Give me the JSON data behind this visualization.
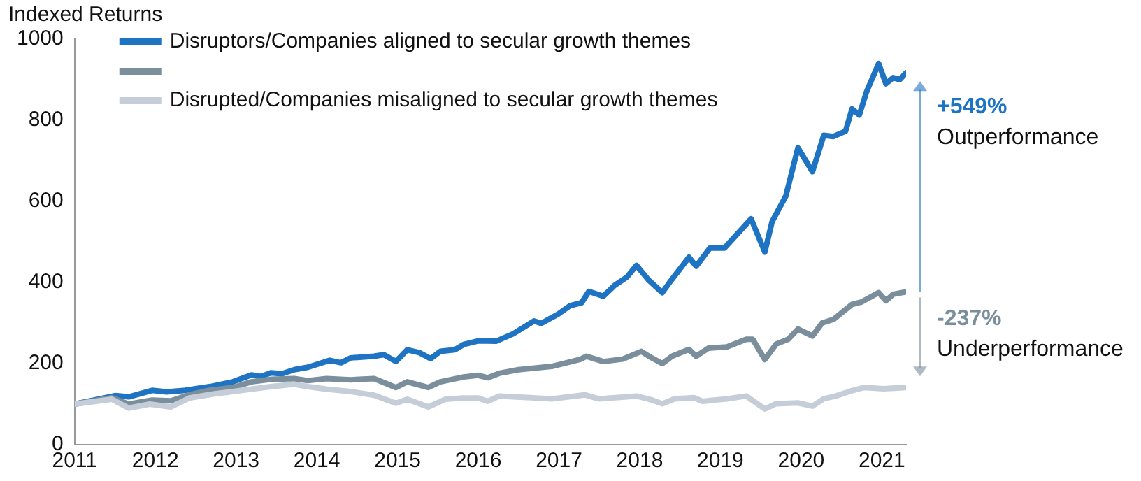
{
  "chart_data": {
    "type": "line",
    "ylabel": "Indexed Returns",
    "xlim": [
      2011,
      2021.3
    ],
    "xticks": [
      2011,
      2012,
      2013,
      2014,
      2015,
      2016,
      2017,
      2018,
      2019,
      2020,
      2021
    ],
    "ylim": [
      0,
      1000
    ],
    "yticks": [
      0,
      200,
      400,
      600,
      800,
      1000
    ],
    "grid": false,
    "legend": "top left",
    "marker": "none",
    "line_style": "solid",
    "annotations": [
      "+549%",
      "Outperformance",
      "-237%",
      "Underperformance"
    ],
    "series": [
      {
        "name": "Disruptors/Companies aligned to secular growth themes",
        "color": "#1f73c3",
        "x": [
          2011,
          2011.5,
          2011.67,
          2011.96,
          2012.14,
          2012.37,
          2012.67,
          2012.96,
          2013.19,
          2013.31,
          2013.43,
          2013.57,
          2013.72,
          2013.89,
          2014.16,
          2014.3,
          2014.42,
          2014.71,
          2014.83,
          2014.98,
          2015.12,
          2015.27,
          2015.41,
          2015.53,
          2015.71,
          2015.82,
          2016.0,
          2016.22,
          2016.43,
          2016.69,
          2016.78,
          2016.99,
          2017.14,
          2017.28,
          2017.37,
          2017.55,
          2017.69,
          2017.84,
          2017.96,
          2018.11,
          2018.28,
          2018.37,
          2018.61,
          2018.7,
          2018.87,
          2019.05,
          2019.38,
          2019.55,
          2019.64,
          2019.81,
          2019.96,
          2020.14,
          2020.28,
          2020.4,
          2020.55,
          2020.63,
          2020.72,
          2020.81,
          2020.96,
          2021.05,
          2021.14,
          2021.22,
          2021.3
        ],
        "values": [
          100,
          121,
          118,
          134,
          130,
          134,
          143,
          155,
          172,
          168,
          177,
          175,
          185,
          191,
          208,
          202,
          214,
          218,
          222,
          205,
          234,
          227,
          212,
          230,
          234,
          247,
          256,
          255,
          273,
          305,
          299,
          322,
          343,
          350,
          378,
          366,
          393,
          413,
          442,
          406,
          375,
          400,
          462,
          440,
          485,
          485,
          557,
          475,
          550,
          613,
          732,
          673,
          763,
          760,
          773,
          828,
          813,
          870,
          940,
          890,
          905,
          900,
          917
        ]
      },
      {
        "color": "#7a8e9c",
        "x": [
          2011,
          2011.46,
          2011.67,
          2011.96,
          2012.19,
          2012.42,
          2012.67,
          2012.96,
          2013.19,
          2013.43,
          2013.72,
          2013.89,
          2014.12,
          2014.42,
          2014.71,
          2014.98,
          2015.12,
          2015.38,
          2015.53,
          2015.82,
          2016.0,
          2016.12,
          2016.26,
          2016.5,
          2016.91,
          2017.26,
          2017.34,
          2017.55,
          2017.79,
          2018.02,
          2018.14,
          2018.28,
          2018.4,
          2018.61,
          2018.7,
          2018.85,
          2019.08,
          2019.32,
          2019.4,
          2019.55,
          2019.69,
          2019.84,
          2019.96,
          2020.14,
          2020.26,
          2020.4,
          2020.63,
          2020.75,
          2020.96,
          2021.05,
          2021.14,
          2021.3
        ],
        "values": [
          100,
          116,
          100,
          110,
          108,
          123,
          134,
          141,
          155,
          161,
          163,
          158,
          163,
          160,
          163,
          141,
          155,
          141,
          155,
          167,
          171,
          165,
          176,
          185,
          193,
          210,
          218,
          205,
          211,
          230,
          215,
          200,
          218,
          235,
          218,
          238,
          241,
          260,
          260,
          210,
          248,
          260,
          285,
          268,
          300,
          309,
          346,
          352,
          375,
          355,
          371,
          377
        ]
      },
      {
        "name": "Disrupted/Companies misaligned to secular growth themes",
        "color": "#c5ced8",
        "x": [
          2011,
          2011.46,
          2011.67,
          2011.93,
          2012.19,
          2012.42,
          2012.72,
          2012.96,
          2013.19,
          2013.43,
          2013.72,
          2013.89,
          2014.12,
          2014.42,
          2014.71,
          2014.98,
          2015.12,
          2015.38,
          2015.59,
          2015.82,
          2016.0,
          2016.12,
          2016.26,
          2016.91,
          2017.32,
          2017.49,
          2017.96,
          2018.14,
          2018.28,
          2018.43,
          2018.67,
          2018.78,
          2019.08,
          2019.32,
          2019.55,
          2019.69,
          2019.96,
          2020.14,
          2020.28,
          2020.43,
          2020.61,
          2020.78,
          2021.02,
          2021.3
        ],
        "values": [
          100,
          112,
          90,
          100,
          93,
          115,
          125,
          131,
          137,
          143,
          149,
          143,
          137,
          131,
          122,
          102,
          112,
          93,
          112,
          115,
          115,
          107,
          120,
          113,
          123,
          113,
          120,
          111,
          101,
          113,
          116,
          107,
          113,
          120,
          88,
          101,
          103,
          95,
          113,
          120,
          132,
          141,
          138,
          141
        ]
      }
    ]
  }
}
